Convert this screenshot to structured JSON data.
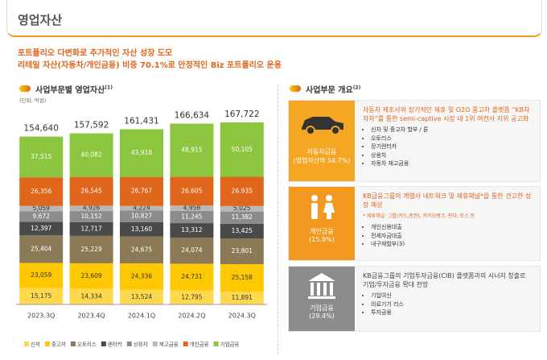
{
  "header": {
    "title": "영업자산"
  },
  "headline": {
    "line1": "포트폴리오 다변화로 추가적인 자산 성장 도모",
    "line2": "리테일 자산(자동차/개인금융) 비중 70.1%로 안정적인 Biz 포트폴리오 운용"
  },
  "chart_data": {
    "type": "stacked_bar",
    "title": "사업부문별 영업자산",
    "title_note": "(1)",
    "unit": "(단위: 억원)",
    "categories": [
      "2023.3Q",
      "2023.4Q",
      "2024.1Q",
      "2024.2Q",
      "2024.3Q"
    ],
    "totals": {
      "values": [
        154640,
        157592,
        161431,
        166634,
        167722
      ],
      "value_labels": [
        "154,640",
        "157,592",
        "161,431",
        "166,634",
        "167,722"
      ]
    },
    "series": [
      {
        "name": "신차",
        "color": "#ffd84d",
        "values": [
          15175,
          14334,
          13524,
          12795,
          11891
        ],
        "value_labels": [
          "15,175",
          "14,334",
          "13,524",
          "12,795",
          "11,891"
        ]
      },
      {
        "name": "중고차",
        "color": "#ffc800",
        "values": [
          23059,
          23609,
          24336,
          24731,
          25158
        ],
        "value_labels": [
          "23,059",
          "23,609",
          "24,336",
          "24,731",
          "25,158"
        ]
      },
      {
        "name": "오토리스",
        "color": "#8b7a55",
        "values": [
          25404,
          25229,
          24675,
          24074,
          23801
        ],
        "value_labels": [
          "25,404",
          "25,229",
          "24,675",
          "24,074",
          "23,801"
        ]
      },
      {
        "name": "렌터카",
        "color": "#4a4a4a",
        "values": [
          12397,
          12717,
          13160,
          13312,
          13425
        ],
        "value_labels": [
          "12,397",
          "12,717",
          "13,160",
          "13,312",
          "13,425"
        ]
      },
      {
        "name": "상용차",
        "color": "#8c8c8c",
        "values": [
          9672,
          10152,
          10827,
          11245,
          11382
        ],
        "value_labels": [
          "9,672",
          "10,152",
          "10,827",
          "11,245",
          "11,382"
        ]
      },
      {
        "name": "재고금융",
        "color": "#b8b8b8",
        "values": [
          5059,
          4926,
          4224,
          4958,
          5025
        ],
        "value_labels": [
          "5,059",
          "4,926",
          "4,224",
          "4,958",
          "5,025"
        ]
      },
      {
        "name": "개인금융",
        "color": "#e0661c",
        "values": [
          26356,
          26545,
          26767,
          26605,
          26935
        ],
        "value_labels": [
          "26,356",
          "26,545",
          "26,767",
          "26,605",
          "26,935"
        ]
      },
      {
        "name": "기업금융",
        "color": "#8cc63f",
        "values": [
          37515,
          40082,
          43918,
          48915,
          50105
        ],
        "value_labels": [
          "37,515",
          "40,082",
          "43,918",
          "48,915",
          "50,105"
        ]
      }
    ]
  },
  "overview": {
    "title": "사업부문 개요",
    "title_note": "(2)",
    "boxes": [
      {
        "label": "자동차금융",
        "share": "(영업자산의 54.7%)",
        "desc": "자동차 제조사와 장기적인 제휴 및 O2O 중고차 플랫폼 “KB차차차”를 통한 semi-captive 시장 내 1위 여전사 지위 공고화",
        "bullets": [
          "신차 및 중고차 할부 / 론",
          "오토리스",
          "장기렌터카",
          "상용차",
          "자동차 재고금융"
        ]
      },
      {
        "label": "개인금융",
        "share": "(15.9%)",
        "desc": "KB금융그룹의 계열사 네트워크 및 제휴채널*을 통한 견고한 성장 예상",
        "note": "* 제휴채널: 그룹(카드,증권), 카카오뱅크, 핀다, 토스 등",
        "bullets": [
          "개인신용대출",
          "전세자금대출",
          "내구재할부(3)"
        ]
      },
      {
        "label": "기업금융",
        "share": "(29.4%)",
        "desc": "KB금융그룹의 기업투자금융(CIB) 플랫폼과의 시너지 창출로 기업/투자금융 확대 전망",
        "bullets": [
          "기업여신",
          "의료기기 리스",
          "투자금융"
        ]
      }
    ]
  }
}
